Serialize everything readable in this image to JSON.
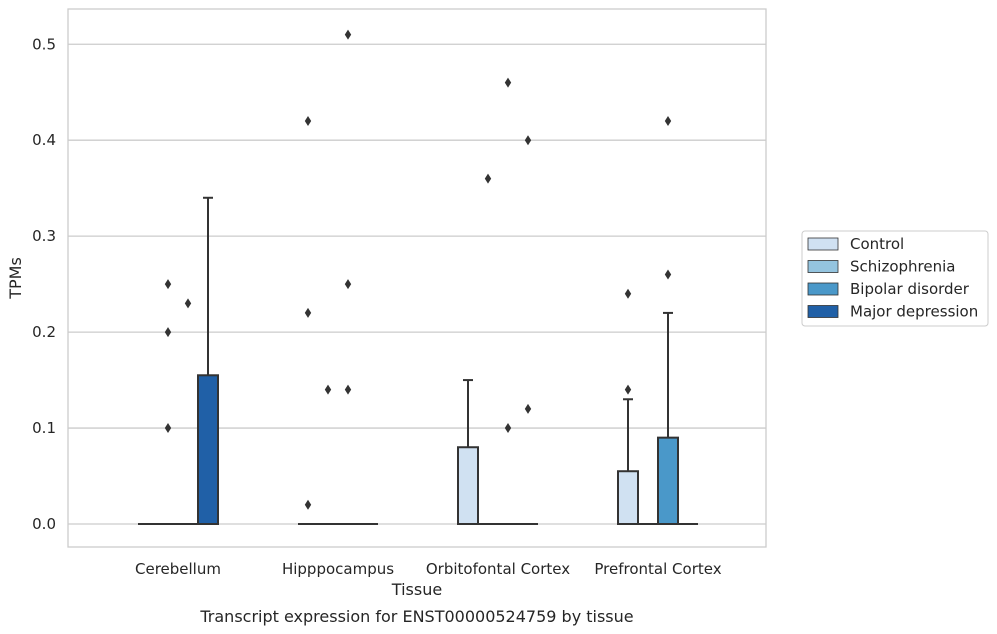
{
  "chart_data": {
    "type": "box",
    "xlabel": "Tissue",
    "ylabel": "TPMs",
    "caption": "Transcript expression for ENST00000524759 by tissue",
    "ylim": [
      -0.025,
      0.535
    ],
    "yticks": [
      0.0,
      0.1,
      0.2,
      0.3,
      0.4,
      0.5
    ],
    "ytick_labels": [
      "0.0",
      "0.1",
      "0.2",
      "0.3",
      "0.4",
      "0.5"
    ],
    "grid": "horizontal",
    "legend_position": "right",
    "categories": [
      "Cerebellum",
      "Hipppocampus",
      "Orbitofontal Cortex",
      "Prefrontal Cortex"
    ],
    "series": [
      {
        "name": "Control",
        "color": "#d0e1f2",
        "boxes": [
          {
            "q1": 0,
            "median": 0,
            "q3": 0,
            "whisker_low": 0,
            "whisker_high": 0,
            "outliers": []
          },
          {
            "q1": 0,
            "median": 0,
            "q3": 0,
            "whisker_low": 0,
            "whisker_high": 0,
            "outliers": [
              0.42,
              0.22,
              0.02
            ]
          },
          {
            "q1": 0,
            "median": 0,
            "q3": 0.08,
            "whisker_low": 0,
            "whisker_high": 0.15,
            "outliers": []
          },
          {
            "q1": 0,
            "median": 0,
            "q3": 0.055,
            "whisker_low": 0,
            "whisker_high": 0.13,
            "outliers": [
              0.24,
              0.14
            ]
          }
        ]
      },
      {
        "name": "Schizophrenia",
        "color": "#94c4df",
        "boxes": [
          {
            "q1": 0,
            "median": 0,
            "q3": 0,
            "whisker_low": 0,
            "whisker_high": 0,
            "outliers": [
              0.25,
              0.2,
              0.1
            ]
          },
          {
            "q1": 0,
            "median": 0,
            "q3": 0,
            "whisker_low": 0,
            "whisker_high": 0,
            "outliers": [
              0.14
            ]
          },
          {
            "q1": 0,
            "median": 0,
            "q3": 0,
            "whisker_low": 0,
            "whisker_high": 0,
            "outliers": [
              0.36
            ]
          },
          {
            "q1": 0,
            "median": 0,
            "q3": 0,
            "whisker_low": 0,
            "whisker_high": 0,
            "outliers": []
          }
        ]
      },
      {
        "name": "Bipolar disorder",
        "color": "#4a98c9",
        "boxes": [
          {
            "q1": 0,
            "median": 0,
            "q3": 0,
            "whisker_low": 0,
            "whisker_high": 0,
            "outliers": [
              0.23
            ]
          },
          {
            "q1": 0,
            "median": 0,
            "q3": 0,
            "whisker_low": 0,
            "whisker_high": 0,
            "outliers": [
              0.51,
              0.25,
              0.14
            ]
          },
          {
            "q1": 0,
            "median": 0,
            "q3": 0,
            "whisker_low": 0,
            "whisker_high": 0,
            "outliers": [
              0.46,
              0.1
            ]
          },
          {
            "q1": 0,
            "median": 0,
            "q3": 0.09,
            "whisker_low": 0,
            "whisker_high": 0.22,
            "outliers": [
              0.42,
              0.26
            ]
          }
        ]
      },
      {
        "name": "Major depression",
        "color": "#2060a7",
        "boxes": [
          {
            "q1": 0,
            "median": 0,
            "q3": 0.155,
            "whisker_low": 0,
            "whisker_high": 0.34,
            "outliers": []
          },
          {
            "q1": 0,
            "median": 0,
            "q3": 0,
            "whisker_low": 0,
            "whisker_high": 0,
            "outliers": []
          },
          {
            "q1": 0,
            "median": 0,
            "q3": 0,
            "whisker_low": 0,
            "whisker_high": 0,
            "outliers": [
              0.4,
              0.12
            ]
          },
          {
            "q1": 0,
            "median": 0,
            "q3": 0,
            "whisker_low": 0,
            "whisker_high": 0,
            "outliers": []
          }
        ]
      }
    ]
  }
}
